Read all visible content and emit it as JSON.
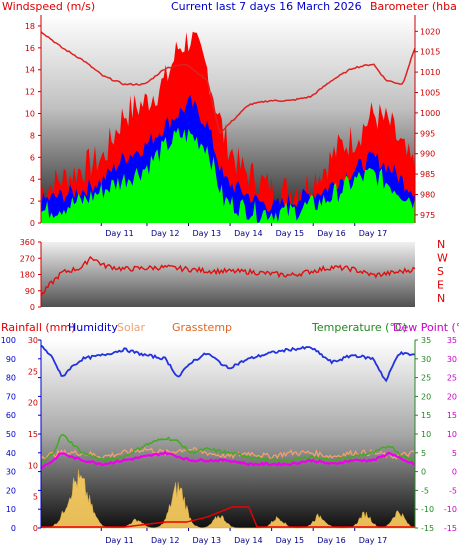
{
  "header": {
    "left_title": "Windspeed (m/s)",
    "center_title": "Current last 7 days 16 March 2026",
    "right_title": "Barometer (hba"
  },
  "legend_bottom": {
    "rainfall": "Rainfall (mm)",
    "humidity": "Humidity",
    "solar": "Solar",
    "grasstemp": "Grasstemp",
    "temperature": "Temperature (°C)",
    "dewpoint": "Dew Point (°C"
  },
  "compass": [
    "N",
    "W",
    "S",
    "E",
    "N"
  ],
  "days": [
    "Day 11",
    "Day 12",
    "Day 13",
    "Day 14",
    "Day 15",
    "Day 16",
    "Day 17"
  ],
  "colors": {
    "wind_gust": "#ff0000",
    "wind_avg": "#0000ff",
    "wind_low": "#00ff00",
    "barometer": "#dd2222",
    "direction": "#dd1111",
    "humidity": "#2233dd",
    "temperature": "#44aa22",
    "dewpoint": "#ee00ee",
    "solar": "#f0a070",
    "rain": "#ee0000",
    "grass": "#ffd060"
  },
  "chart_data": [
    {
      "type": "area",
      "title": "Current last 7 days 16 March 2026",
      "ylabel_left": "Windspeed (m/s)",
      "ylabel_right": "Barometer (hba",
      "y_left_ticks": [
        0,
        2,
        4,
        6,
        8,
        10,
        12,
        14,
        16,
        18
      ],
      "y_right_ticks": [
        975,
        980,
        985,
        990,
        995,
        1000,
        1005,
        1010,
        1015,
        1020
      ],
      "ylim_left": [
        0,
        19
      ],
      "ylim_right": [
        973,
        1024
      ],
      "x": [
        "Day 11",
        "Day 12",
        "Day 13",
        "Day 14",
        "Day 15",
        "Day 16",
        "Day 17"
      ],
      "series": [
        {
          "name": "gust",
          "points": [
            [
              0,
              3
            ],
            [
              0.5,
              4
            ],
            [
              1,
              5
            ],
            [
              1.5,
              6
            ],
            [
              2,
              10
            ],
            [
              2.5,
              11
            ],
            [
              3,
              13
            ],
            [
              3.3,
              16
            ],
            [
              3.6,
              17
            ],
            [
              4,
              14
            ],
            [
              4.4,
              8
            ],
            [
              4.8,
              5
            ],
            [
              5.2,
              4
            ],
            [
              5.6,
              3
            ],
            [
              6,
              3
            ],
            [
              6.4,
              3.5
            ],
            [
              6.8,
              5
            ],
            [
              7.2,
              7
            ],
            [
              7.6,
              8
            ],
            [
              8,
              10
            ],
            [
              8.4,
              9
            ],
            [
              8.8,
              6
            ],
            [
              9,
              5
            ]
          ]
        },
        {
          "name": "avg",
          "points": [
            [
              0,
              2
            ],
            [
              0.5,
              2.5
            ],
            [
              1,
              3
            ],
            [
              1.5,
              4
            ],
            [
              2,
              6
            ],
            [
              2.5,
              7
            ],
            [
              3,
              9
            ],
            [
              3.3,
              10
            ],
            [
              3.6,
              11
            ],
            [
              4,
              9
            ],
            [
              4.4,
              4
            ],
            [
              4.8,
              3
            ],
            [
              5.2,
              2
            ],
            [
              5.6,
              1.5
            ],
            [
              6,
              2
            ],
            [
              6.4,
              2.5
            ],
            [
              6.8,
              3
            ],
            [
              7.2,
              4
            ],
            [
              7.6,
              5
            ],
            [
              8,
              6
            ],
            [
              8.4,
              5
            ],
            [
              8.8,
              3.5
            ],
            [
              9,
              3
            ]
          ]
        },
        {
          "name": "low",
          "points": [
            [
              0,
              1
            ],
            [
              0.5,
              1.5
            ],
            [
              1,
              2
            ],
            [
              1.5,
              3
            ],
            [
              2,
              4
            ],
            [
              2.5,
              5
            ],
            [
              3,
              7
            ],
            [
              3.3,
              8
            ],
            [
              3.6,
              8
            ],
            [
              4,
              7
            ],
            [
              4.4,
              2
            ],
            [
              4.8,
              1.5
            ],
            [
              5.2,
              1
            ],
            [
              5.6,
              1
            ],
            [
              6,
              1
            ],
            [
              6.4,
              1.5
            ],
            [
              6.8,
              2
            ],
            [
              7.2,
              3
            ],
            [
              7.6,
              4
            ],
            [
              8,
              4.5
            ],
            [
              8.4,
              3.5
            ],
            [
              8.8,
              2.5
            ],
            [
              9,
              2
            ]
          ]
        },
        {
          "name": "barometer",
          "points": [
            [
              0,
              1020
            ],
            [
              0.5,
              1016
            ],
            [
              1,
              1013
            ],
            [
              1.5,
              1009
            ],
            [
              2,
              1007
            ],
            [
              2.5,
              1007
            ],
            [
              3,
              1011
            ],
            [
              3.5,
              1012
            ],
            [
              4,
              1008
            ],
            [
              4.3,
              995
            ],
            [
              4.6,
              998
            ],
            [
              5,
              1002
            ],
            [
              5.5,
              1003
            ],
            [
              6,
              1003
            ],
            [
              6.5,
              1004
            ],
            [
              7,
              1008
            ],
            [
              7.5,
              1011
            ],
            [
              8,
              1012
            ],
            [
              8.3,
              1008
            ],
            [
              8.7,
              1007
            ],
            [
              9,
              1016
            ]
          ]
        }
      ]
    },
    {
      "type": "line",
      "ylabel_right": "N W S E N",
      "y_ticks": [
        0,
        90,
        180,
        270,
        360
      ],
      "ylim": [
        0,
        360
      ],
      "series": [
        {
          "name": "direction",
          "points": [
            [
              0,
              60
            ],
            [
              0.2,
              120
            ],
            [
              0.5,
              190
            ],
            [
              1,
              220
            ],
            [
              1.2,
              280
            ],
            [
              1.5,
              230
            ],
            [
              2,
              210
            ],
            [
              3,
              220
            ],
            [
              4,
              200
            ],
            [
              5,
              195
            ],
            [
              6,
              175
            ],
            [
              7,
              220
            ],
            [
              7.5,
              210
            ],
            [
              8,
              175
            ],
            [
              8.5,
              190
            ],
            [
              9,
              210
            ]
          ]
        }
      ]
    },
    {
      "type": "area",
      "y_left_rain": [
        0,
        5,
        10,
        15,
        20,
        25,
        30
      ],
      "y_left_humidity": [
        0,
        10,
        20,
        30,
        40,
        50,
        60,
        70,
        80,
        90,
        100
      ],
      "y_right_temp": [
        -15,
        -10,
        -5,
        0,
        5,
        10,
        15,
        20,
        25,
        30,
        35
      ],
      "ylim_temp": [
        -15,
        35
      ],
      "series": [
        {
          "name": "Humidity",
          "points": [
            [
              0,
              97
            ],
            [
              0.3,
              90
            ],
            [
              0.5,
              80
            ],
            [
              0.7,
              85
            ],
            [
              1,
              90
            ],
            [
              1.5,
              92
            ],
            [
              2,
              95
            ],
            [
              2.5,
              92
            ],
            [
              3,
              90
            ],
            [
              3.3,
              80
            ],
            [
              3.6,
              88
            ],
            [
              4,
              93
            ],
            [
              4.5,
              85
            ],
            [
              5,
              90
            ],
            [
              5.5,
              93
            ],
            [
              6,
              95
            ],
            [
              6.5,
              96
            ],
            [
              7,
              88
            ],
            [
              7.5,
              92
            ],
            [
              8,
              90
            ],
            [
              8.3,
              78
            ],
            [
              8.6,
              93
            ],
            [
              9,
              92
            ]
          ]
        },
        {
          "name": "Temperature",
          "points": [
            [
              0,
              2
            ],
            [
              0.3,
              5
            ],
            [
              0.5,
              10
            ],
            [
              0.7,
              8
            ],
            [
              1,
              5
            ],
            [
              1.5,
              3
            ],
            [
              2,
              4
            ],
            [
              2.5,
              7
            ],
            [
              3,
              9
            ],
            [
              3.3,
              8
            ],
            [
              3.6,
              5
            ],
            [
              4,
              6
            ],
            [
              4.5,
              5
            ],
            [
              5,
              4
            ],
            [
              5.5,
              3
            ],
            [
              6,
              3
            ],
            [
              6.5,
              4
            ],
            [
              7,
              3
            ],
            [
              7.5,
              4
            ],
            [
              8,
              5
            ],
            [
              8.4,
              7
            ],
            [
              8.7,
              4
            ],
            [
              9,
              3
            ]
          ]
        },
        {
          "name": "Dew Point",
          "points": [
            [
              0,
              1
            ],
            [
              0.3,
              3
            ],
            [
              0.5,
              5
            ],
            [
              0.7,
              4
            ],
            [
              1,
              3
            ],
            [
              1.5,
              2
            ],
            [
              2,
              3
            ],
            [
              2.5,
              4
            ],
            [
              3,
              5
            ],
            [
              3.3,
              4
            ],
            [
              3.6,
              3
            ],
            [
              4,
              3
            ],
            [
              4.5,
              3
            ],
            [
              5,
              2
            ],
            [
              5.5,
              2
            ],
            [
              6,
              2
            ],
            [
              6.5,
              3
            ],
            [
              7,
              2
            ],
            [
              7.5,
              3
            ],
            [
              8,
              3
            ],
            [
              8.4,
              5
            ],
            [
              8.7,
              3
            ],
            [
              9,
              2
            ]
          ]
        },
        {
          "name": "Solar",
          "points": [
            [
              0,
              4
            ],
            [
              0.5,
              5
            ],
            [
              1,
              5
            ],
            [
              1.5,
              4
            ],
            [
              2,
              5
            ],
            [
              2.5,
              6
            ],
            [
              3,
              5
            ],
            [
              3.5,
              6
            ],
            [
              4,
              5
            ],
            [
              4.5,
              4
            ],
            [
              5,
              5
            ],
            [
              5.5,
              4
            ],
            [
              6,
              5
            ],
            [
              6.5,
              5
            ],
            [
              7,
              4
            ],
            [
              7.5,
              5
            ],
            [
              8,
              5
            ],
            [
              8.5,
              4
            ],
            [
              9,
              5
            ]
          ]
        },
        {
          "name": "Rain",
          "points": [
            [
              0,
              0
            ],
            [
              2,
              0
            ],
            [
              2.5,
              0.5
            ],
            [
              3,
              1
            ],
            [
              3.5,
              1
            ],
            [
              4,
              2
            ],
            [
              4.3,
              3
            ],
            [
              4.6,
              4
            ],
            [
              5,
              4
            ],
            [
              5.2,
              0
            ],
            [
              9,
              0
            ]
          ]
        }
      ]
    }
  ]
}
